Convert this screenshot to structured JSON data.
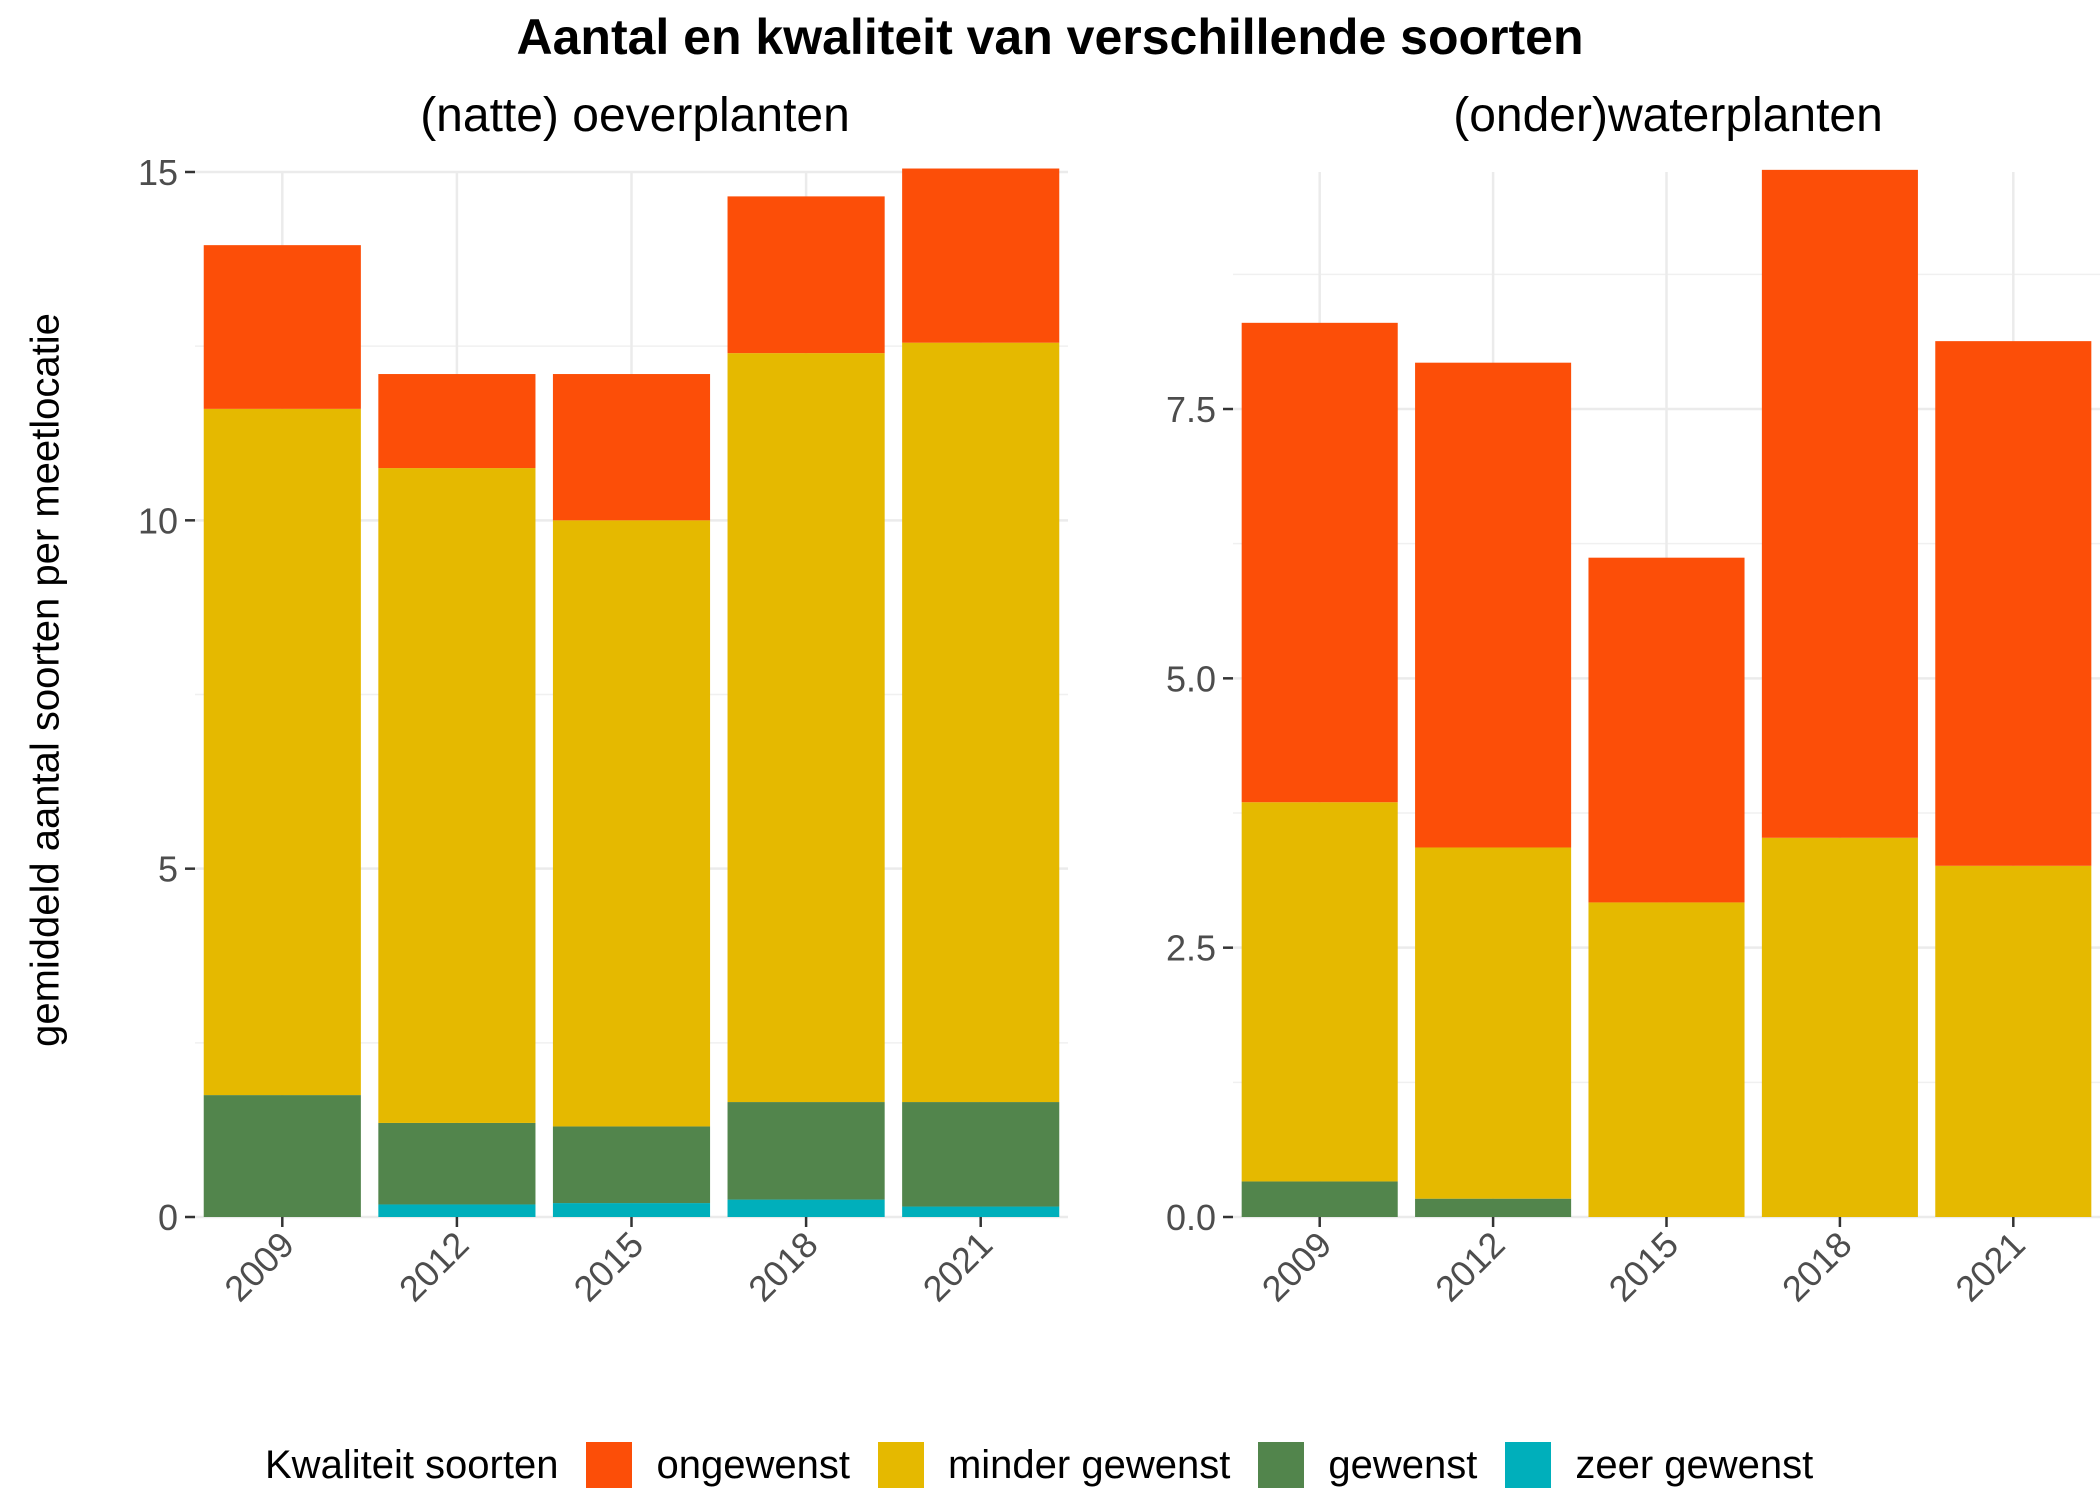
{
  "title": "Aantal en kwaliteit van verschillende soorten",
  "ylabel": "gemiddeld aantal soorten per meetlocatie",
  "legend": {
    "title": "Kwaliteit soorten",
    "items": [
      {
        "label": "ongewenst",
        "color": "#FC4E08"
      },
      {
        "label": "minder gewenst",
        "color": "#E5B900"
      },
      {
        "label": "gewenst",
        "color": "#52854C"
      },
      {
        "label": "zeer gewenst",
        "color": "#00AFBB"
      }
    ]
  },
  "chart_data": [
    {
      "type": "bar",
      "stacked": true,
      "subtitle": "(natte) oeverplanten",
      "categories": [
        "2009",
        "2012",
        "2015",
        "2018",
        "2021"
      ],
      "series": [
        {
          "name": "zeer gewenst",
          "color": "#00AFBB",
          "values": [
            0.0,
            0.18,
            0.2,
            0.25,
            0.15
          ]
        },
        {
          "name": "gewenst",
          "color": "#52854C",
          "values": [
            1.75,
            1.17,
            1.1,
            1.4,
            1.5
          ]
        },
        {
          "name": "minder gewenst",
          "color": "#E5B900",
          "values": [
            9.85,
            9.4,
            8.7,
            10.75,
            10.9
          ]
        },
        {
          "name": "ongewenst",
          "color": "#FC4E08",
          "values": [
            2.35,
            1.35,
            2.1,
            2.25,
            2.5
          ]
        }
      ],
      "ylim": [
        0,
        15
      ],
      "yticks": [
        "0",
        "5",
        "10",
        "15"
      ],
      "ytick_values": [
        0,
        5,
        10,
        15
      ],
      "grid": true
    },
    {
      "type": "bar",
      "stacked": true,
      "subtitle": "(onder)waterplanten",
      "categories": [
        "2009",
        "2012",
        "2015",
        "2018",
        "2021"
      ],
      "series": [
        {
          "name": "zeer gewenst",
          "color": "#00AFBB",
          "values": [
            0.0,
            0.0,
            0.0,
            0.0,
            0.0
          ]
        },
        {
          "name": "gewenst",
          "color": "#52854C",
          "values": [
            0.33,
            0.17,
            0.0,
            0.0,
            0.0
          ]
        },
        {
          "name": "minder gewenst",
          "color": "#E5B900",
          "values": [
            3.52,
            3.26,
            2.92,
            3.52,
            3.26
          ]
        },
        {
          "name": "ongewenst",
          "color": "#FC4E08",
          "values": [
            4.45,
            4.5,
            3.2,
            6.2,
            4.87
          ]
        }
      ],
      "ylim": [
        0,
        9.7
      ],
      "yticks": [
        "0.0",
        "2.5",
        "5.0",
        "7.5"
      ],
      "ytick_values": [
        0,
        2.5,
        5.0,
        7.5
      ],
      "grid": true
    }
  ]
}
